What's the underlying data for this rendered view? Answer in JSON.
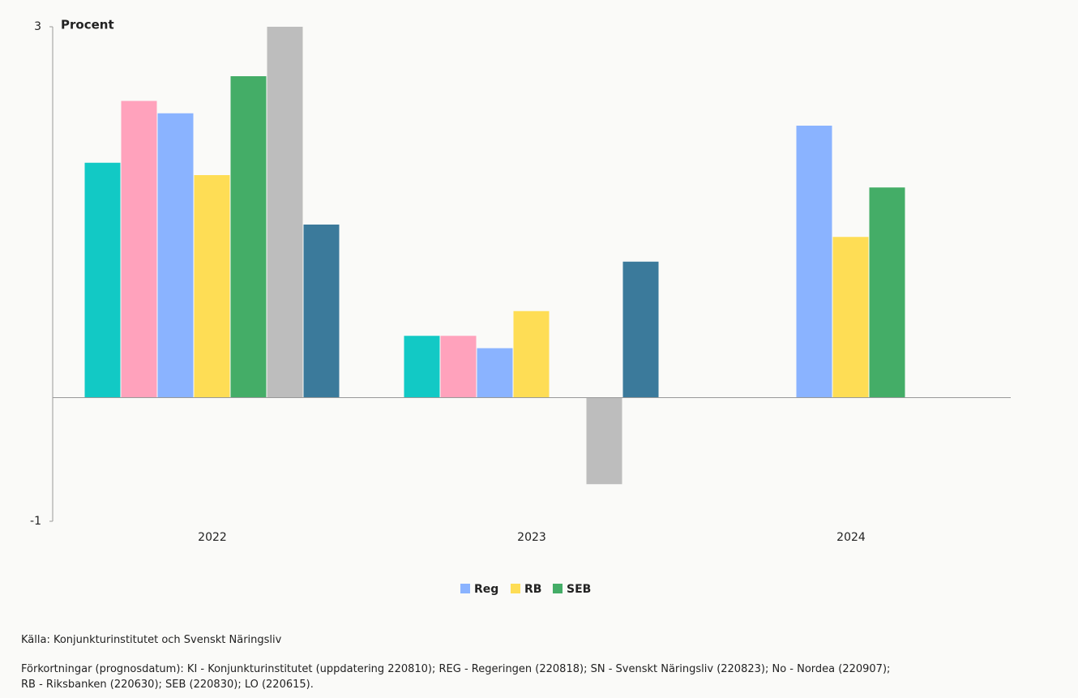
{
  "chart_data": {
    "type": "bar",
    "ylabel": "Procent",
    "categories": [
      "2022",
      "2023",
      "2024"
    ],
    "series": [
      {
        "color": "#12c9c5",
        "values": [
          1.9,
          0.5,
          null
        ]
      },
      {
        "color": "#ffa2bc",
        "values": [
          2.4,
          0.5,
          null
        ]
      },
      {
        "name": "Reg",
        "color": "#8ab3ff",
        "values": [
          2.3,
          0.4,
          2.2
        ]
      },
      {
        "name": "RB",
        "color": "#fedd55",
        "values": [
          1.8,
          0.7,
          1.3
        ]
      },
      {
        "name": "SEB",
        "color": "#44ad67",
        "values": [
          2.6,
          null,
          1.7
        ]
      },
      {
        "color": "#bdbdbd",
        "values": [
          3.0,
          -0.7,
          null
        ]
      },
      {
        "color": "#3b7a9b",
        "values": [
          1.4,
          1.1,
          null
        ]
      }
    ],
    "ylim": [
      -1,
      3
    ],
    "yticks": [
      -1,
      3
    ],
    "grid": false,
    "legend": "bottom"
  },
  "source": "Källa: Konjunkturinstitutet och Svenskt Näringsliv",
  "notes": [
    "Förkortningar (prognosdatum): KI - Konjunkturinstitutet (uppdatering 220810); REG - Regeringen (220818); SN - Svenskt Näringsliv (220823); No - Nordea (220907);",
    "RB - Riksbanken (220630); SEB (220830); LO (220615)."
  ]
}
